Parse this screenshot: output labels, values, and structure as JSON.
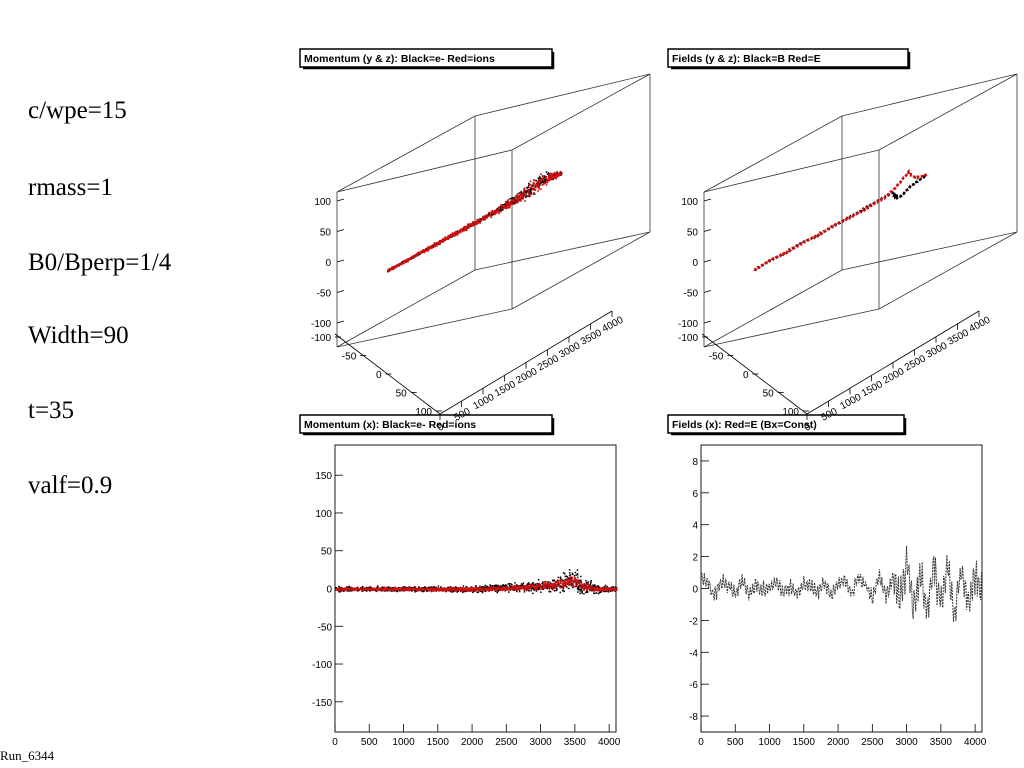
{
  "params": [
    {
      "text": "c/wpe=15"
    },
    {
      "text": "rmass=1"
    },
    {
      "text": "B0/Bperp=1/4"
    },
    {
      "text": "Width=90"
    },
    {
      "text": "t=35"
    },
    {
      "text": "valf=0.9"
    }
  ],
  "run_label": "Run_6344",
  "colors": {
    "electrons": "#000000",
    "ions": "#cc1111",
    "B": "#000000",
    "E": "#cc1111"
  },
  "chart_data": [
    {
      "type": "scatter",
      "title": "Momentum (y & z): Black=e-  Red=ions",
      "projection": "3d",
      "x_ticks": [
        "0",
        "500",
        "1000",
        "1500",
        "2000",
        "2500",
        "3000",
        "3500",
        "4000"
      ],
      "y_ticks": [
        "-100",
        "-50",
        "0",
        "50",
        "100"
      ],
      "z_ticks": [
        "-100",
        "-50",
        "0",
        "50",
        "100"
      ],
      "xlim": [
        0,
        4100
      ],
      "ylim": [
        -120,
        120
      ],
      "zlim": [
        -120,
        120
      ],
      "series": [
        {
          "name": "e-",
          "color": "#000000",
          "kind": "points",
          "x": [
            0,
            500,
            1000,
            1500,
            2000,
            2500,
            3000,
            3300,
            3500,
            3700,
            4000
          ],
          "y": [
            0,
            0,
            0,
            0,
            0,
            0,
            2,
            5,
            8,
            6,
            3
          ],
          "z": [
            0,
            0,
            0,
            0,
            0,
            0,
            3,
            6,
            10,
            8,
            4
          ],
          "spread": [
            3,
            3,
            3,
            3,
            4,
            5,
            12,
            22,
            18,
            10,
            5
          ]
        },
        {
          "name": "ions",
          "color": "#cc1111",
          "kind": "points",
          "x": [
            0,
            500,
            1000,
            1500,
            2000,
            2500,
            3000,
            3300,
            3500,
            3700,
            4000
          ],
          "y": [
            0,
            0,
            0,
            0,
            0,
            0,
            2,
            5,
            8,
            6,
            3
          ],
          "z": [
            0,
            0,
            0,
            0,
            0,
            0,
            3,
            6,
            10,
            8,
            4
          ],
          "spread": [
            4,
            4,
            5,
            6,
            7,
            9,
            15,
            24,
            20,
            12,
            6
          ]
        }
      ]
    },
    {
      "type": "line",
      "title": "Fields (y & z): Black=B  Red=E",
      "projection": "3d",
      "x_ticks": [
        "0",
        "500",
        "1000",
        "1500",
        "2000",
        "2500",
        "3000",
        "3500",
        "4000"
      ],
      "y_ticks": [
        "-100",
        "-50",
        "0",
        "50",
        "100"
      ],
      "z_ticks": [
        "-100",
        "-50",
        "0",
        "50",
        "100"
      ],
      "xlim": [
        0,
        4100
      ],
      "ylim": [
        -120,
        120
      ],
      "zlim": [
        -120,
        120
      ],
      "series": [
        {
          "name": "B",
          "color": "#000000",
          "kind": "line",
          "x": [
            0,
            500,
            1000,
            1500,
            2000,
            2500,
            3000,
            3200,
            3400,
            3500,
            3700,
            4000
          ],
          "y": [
            0,
            1,
            0,
            1,
            0,
            1,
            2,
            4,
            -15,
            -20,
            -5,
            0
          ],
          "z": [
            0,
            0,
            1,
            0,
            0,
            1,
            2,
            3,
            -8,
            -12,
            -2,
            0
          ]
        },
        {
          "name": "E",
          "color": "#cc1111",
          "kind": "line",
          "x": [
            0,
            500,
            1000,
            1500,
            2000,
            2500,
            3000,
            3200,
            3400,
            3500,
            3700,
            4000
          ],
          "y": [
            0,
            0,
            -1,
            0,
            1,
            0,
            2,
            12,
            25,
            20,
            8,
            0
          ],
          "z": [
            0,
            1,
            0,
            0,
            1,
            0,
            1,
            8,
            22,
            15,
            6,
            0
          ]
        }
      ]
    },
    {
      "type": "scatter",
      "title": "Momentum (x): Black=e-  Red=ions",
      "x_ticks": [
        "0",
        "500",
        "1000",
        "1500",
        "2000",
        "2500",
        "3000",
        "3500",
        "4000"
      ],
      "y_ticks": [
        "-150",
        "-100",
        "-50",
        "0",
        "50",
        "100",
        "150"
      ],
      "xlim": [
        0,
        4100
      ],
      "ylim": [
        -190,
        190
      ],
      "series": [
        {
          "name": "e-",
          "color": "#000000",
          "x": [
            0,
            500,
            1000,
            1500,
            2000,
            2500,
            3000,
            3300,
            3500,
            3600,
            3800,
            4000
          ],
          "y": [
            0,
            0,
            0,
            0,
            0,
            2,
            4,
            8,
            12,
            4,
            0,
            0
          ],
          "spread": [
            5,
            5,
            5,
            6,
            6,
            8,
            12,
            20,
            24,
            18,
            10,
            6
          ]
        },
        {
          "name": "ions",
          "color": "#cc1111",
          "x": [
            0,
            500,
            1000,
            1500,
            2000,
            2500,
            3000,
            3300,
            3500,
            3600,
            3800,
            4000
          ],
          "y": [
            0,
            0,
            0,
            0,
            0,
            1,
            3,
            7,
            11,
            5,
            0,
            0
          ],
          "spread": [
            3,
            3,
            3,
            3,
            4,
            5,
            7,
            10,
            12,
            10,
            5,
            3
          ]
        }
      ]
    },
    {
      "type": "line",
      "title": "Fields (x): Red=E  (Bx=Const)",
      "x_ticks": [
        "0",
        "500",
        "1000",
        "1500",
        "2000",
        "2500",
        "3000",
        "3500",
        "4000"
      ],
      "y_ticks": [
        "-8",
        "-6",
        "-4",
        "-2",
        "0",
        "2",
        "4",
        "6",
        "8"
      ],
      "xlim": [
        0,
        4100
      ],
      "ylim": [
        -9,
        9
      ],
      "series": [
        {
          "name": "E",
          "color": "#333333",
          "x": [
            0,
            100,
            200,
            300,
            400,
            500,
            600,
            700,
            800,
            900,
            1000,
            1100,
            1200,
            1300,
            1400,
            1500,
            1600,
            1700,
            1800,
            1900,
            2000,
            2100,
            2200,
            2300,
            2400,
            2500,
            2600,
            2700,
            2800,
            2900,
            3000,
            3100,
            3200,
            3300,
            3400,
            3500,
            3600,
            3700,
            3800,
            3900,
            4000,
            4100
          ],
          "y": [
            0.7,
            0.3,
            -0.4,
            0.5,
            0.2,
            -0.3,
            0.6,
            -0.5,
            0.3,
            -0.2,
            0.1,
            0.4,
            -0.3,
            0.2,
            -0.4,
            0.3,
            0.1,
            -0.2,
            0.4,
            -0.5,
            0.3,
            0.6,
            -0.4,
            0.8,
            0.2,
            -0.6,
            0.9,
            -0.5,
            0.7,
            -0.8,
            1.8,
            -1.2,
            1.0,
            -1.3,
            1.5,
            -1.0,
            1.4,
            -1.6,
            1.2,
            -0.9,
            1.0,
            -0.5
          ]
        }
      ]
    }
  ]
}
